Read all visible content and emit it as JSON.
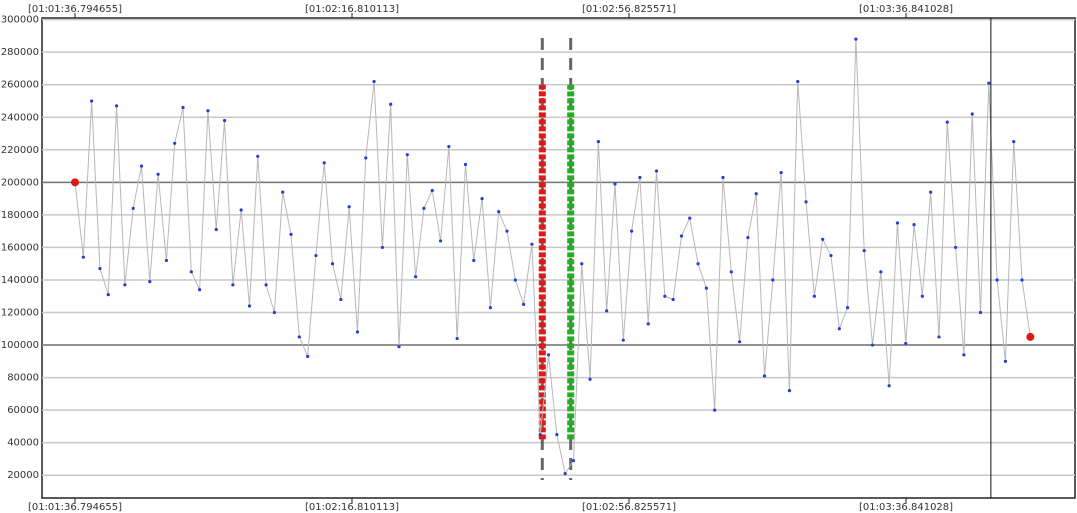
{
  "chart_data": {
    "type": "line",
    "x": [
      3696.8,
      3698,
      3699.2,
      3700.4,
      3701.6,
      3702.8,
      3704,
      3705.2,
      3706.4,
      3707.6,
      3708.8,
      3710,
      3711.2,
      3712.4,
      3713.6,
      3714.8,
      3716,
      3717.2,
      3718.4,
      3719.6,
      3720.8,
      3722,
      3723.2,
      3724.4,
      3725.6,
      3726.8,
      3728,
      3729.2,
      3730.4,
      3731.6,
      3732.8,
      3734,
      3735.2,
      3736.4,
      3737.6,
      3738.8,
      3740,
      3741.2,
      3742.4,
      3743.6,
      3744.8,
      3746,
      3747.2,
      3748.4,
      3749.6,
      3750.8,
      3752,
      3753.2,
      3754.4,
      3755.6,
      3756.8,
      3758,
      3759.2,
      3760.4,
      3761.6,
      3762.8,
      3764,
      3765.2,
      3766.4,
      3767.6,
      3768.8,
      3770,
      3771.2,
      3772.4,
      3773.6,
      3774.8,
      3776,
      3777.2,
      3778.4,
      3779.6,
      3780.8,
      3782,
      3783.2,
      3784.4,
      3785.6,
      3786.8,
      3788,
      3789.2,
      3790.4,
      3791.6,
      3792.8,
      3794,
      3795.2,
      3796.4,
      3797.6,
      3798.8,
      3800,
      3801.2,
      3802.4,
      3803.6,
      3804.8,
      3806,
      3807.2,
      3808.4,
      3809.6,
      3810.8,
      3812,
      3813.2,
      3814.4,
      3815.6,
      3816.8,
      3818,
      3819.2,
      3820.4,
      3821.6,
      3822.8,
      3824,
      3825.2,
      3826.4,
      3827.6,
      3828.8,
      3830,
      3831.2,
      3832.4,
      3833.6,
      3834.8
    ],
    "values": [
      200000,
      154000,
      250000,
      147000,
      131000,
      247000,
      137000,
      184000,
      210000,
      139000,
      205000,
      152000,
      224000,
      246000,
      145000,
      134000,
      244000,
      171000,
      238000,
      137000,
      183000,
      124000,
      216000,
      137000,
      120000,
      194000,
      168000,
      105000,
      93000,
      155000,
      212000,
      150000,
      128000,
      185000,
      108000,
      215000,
      262000,
      160000,
      248000,
      99000,
      217000,
      142000,
      184000,
      195000,
      164000,
      222000,
      104000,
      211000,
      152000,
      190000,
      123000,
      182000,
      170000,
      140000,
      125000,
      162000,
      45000,
      94000,
      45000,
      21000,
      29000,
      150000,
      79000,
      225000,
      121000,
      199000,
      103000,
      170000,
      203000,
      113000,
      207000,
      130000,
      128000,
      167000,
      178000,
      150000,
      135000,
      60000,
      203000,
      145000,
      102000,
      166000,
      193000,
      81000,
      140000,
      206000,
      72000,
      262000,
      188000,
      130000,
      165000,
      155000,
      110000,
      123000,
      288000,
      158000,
      100000,
      145000,
      75000,
      175000,
      101000,
      174000,
      130000,
      194000,
      105000,
      237000,
      160000,
      94000,
      242000,
      120000,
      261000,
      140000,
      90000,
      225000,
      140000,
      105000
    ],
    "color": "#1f3fd8",
    "line_color": "#b8b8b8",
    "endpoint_color": "#e01818",
    "xlim": [
      3692.03,
      3841.25
    ],
    "xticks": [
      {
        "value": 3696.794655,
        "label": "[01:01:36.794655]"
      },
      {
        "value": 3736.810113,
        "label": "[01:02:16.810113]"
      },
      {
        "value": 3776.825571,
        "label": "[01:02:56.825571]"
      },
      {
        "value": 3816.841028,
        "label": "[01:03:36.841028]"
      }
    ],
    "ylim": [
      6000,
      301000
    ],
    "yticks": [
      20000,
      40000,
      60000,
      80000,
      100000,
      120000,
      140000,
      160000,
      180000,
      200000,
      220000,
      240000,
      260000,
      280000,
      300000
    ],
    "grid": true,
    "reference_lines": [
      100000,
      200000
    ],
    "markers": [
      {
        "x": 3764.3,
        "color": "#e01818",
        "ylim": [
          42000,
          260000
        ]
      },
      {
        "x": 3768.4,
        "color": "#20b020",
        "ylim": [
          42000,
          260000
        ]
      }
    ],
    "cursor_x": 3829.1
  }
}
